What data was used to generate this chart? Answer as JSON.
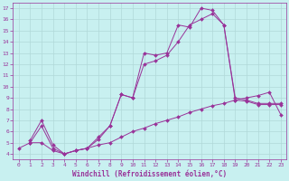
{
  "bg_color": "#c8f0f0",
  "grid_color": "#b0d8d8",
  "line_color": "#993399",
  "xlabel": "Windchill (Refroidissement éolien,°C)",
  "xlim": [
    -0.5,
    23.5
  ],
  "ylim": [
    3.5,
    17.5
  ],
  "xticks": [
    0,
    1,
    2,
    3,
    4,
    5,
    6,
    7,
    8,
    9,
    10,
    11,
    12,
    13,
    14,
    15,
    16,
    17,
    18,
    19,
    20,
    21,
    22,
    23
  ],
  "yticks": [
    4,
    5,
    6,
    7,
    8,
    9,
    10,
    11,
    12,
    13,
    14,
    15,
    16,
    17
  ],
  "curve1_x": [
    1,
    2,
    3,
    4,
    5,
    6,
    7,
    8,
    9,
    10,
    11,
    12,
    13,
    14,
    15,
    16,
    17,
    18,
    19,
    20,
    21,
    22,
    23
  ],
  "curve1_y": [
    5.0,
    6.5,
    4.5,
    4.0,
    4.3,
    4.5,
    5.5,
    6.5,
    9.3,
    9.0,
    13.0,
    12.8,
    13.0,
    15.5,
    15.3,
    17.0,
    16.8,
    15.5,
    9.0,
    8.8,
    8.5,
    8.5,
    8.5
  ],
  "curve2_x": [
    1,
    2,
    3,
    4,
    5,
    6,
    7,
    8,
    9,
    10,
    11,
    12,
    13,
    14,
    15,
    16,
    17,
    18,
    19,
    20,
    21,
    22,
    23
  ],
  "curve2_y": [
    5.2,
    7.0,
    4.8,
    4.0,
    4.3,
    4.5,
    5.3,
    6.5,
    9.3,
    9.0,
    12.0,
    12.3,
    12.8,
    14.0,
    15.5,
    16.0,
    16.5,
    15.5,
    8.8,
    8.7,
    8.4,
    8.4,
    8.4
  ],
  "curve3_x": [
    0,
    1,
    2,
    3,
    4,
    5,
    6,
    7,
    8,
    9,
    10,
    11,
    12,
    13,
    14,
    15,
    16,
    17,
    18,
    19,
    20,
    21,
    22,
    23
  ],
  "curve3_y": [
    4.5,
    5.0,
    5.0,
    4.3,
    4.0,
    4.3,
    4.5,
    4.8,
    5.0,
    5.5,
    6.0,
    6.3,
    6.7,
    7.0,
    7.3,
    7.7,
    8.0,
    8.3,
    8.5,
    8.8,
    9.0,
    9.2,
    9.5,
    7.5
  ]
}
